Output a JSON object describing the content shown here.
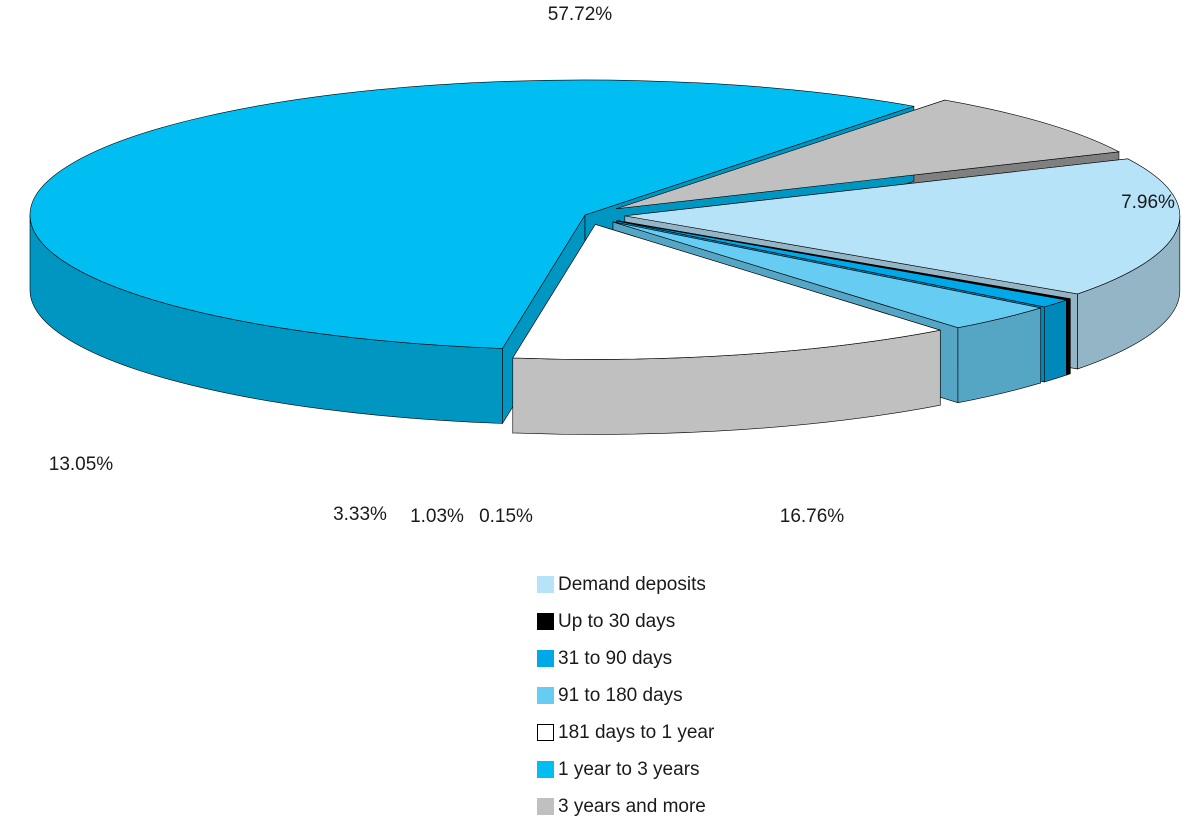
{
  "chart_data": {
    "type": "pie",
    "style": "3d-exploded",
    "slices": [
      {
        "name": "Demand deposits",
        "value": 16.76,
        "label": "16.76%",
        "color": "#b6e3f8",
        "side_color": "#93b5c6"
      },
      {
        "name": "Up to 30 days",
        "value": 0.15,
        "label": "0.15%",
        "color": "#000000",
        "side_color": "#000000"
      },
      {
        "name": "31 to 90 days",
        "value": 1.03,
        "label": "1.03%",
        "color": "#00a8e8",
        "side_color": "#0088bb"
      },
      {
        "name": "91 to 180 days",
        "value": 3.33,
        "label": "3.33%",
        "color": "#66ccf2",
        "side_color": "#55a5c5"
      },
      {
        "name": "181 days to 1 year",
        "value": 13.05,
        "label": "13.05%",
        "color": "#ffffff",
        "side_color": "#c0c0c0"
      },
      {
        "name": "1 year to 3 years",
        "value": 57.72,
        "label": "57.72%",
        "color": "#00bdf2",
        "side_color": "#0096c2"
      },
      {
        "name": "3 years and more",
        "value": 7.96,
        "label": "7.96%",
        "color": "#c0c0c0",
        "side_color": "#808080"
      }
    ],
    "legend_position": "bottom",
    "legend_entries": [
      {
        "label": "Demand deposits",
        "color": "#b6e3f8"
      },
      {
        "label": "Up to 30 days",
        "color": "#000000"
      },
      {
        "label": "31 to 90 days",
        "color": "#00a8e8"
      },
      {
        "label": "91 to 180 days",
        "color": "#66ccf2"
      },
      {
        "label": "181 days to 1 year",
        "color": "#ffffff"
      },
      {
        "label": "1 year to 3 years",
        "color": "#00bdf2"
      },
      {
        "label": "3 years and more",
        "color": "#c0c0c0"
      }
    ]
  }
}
